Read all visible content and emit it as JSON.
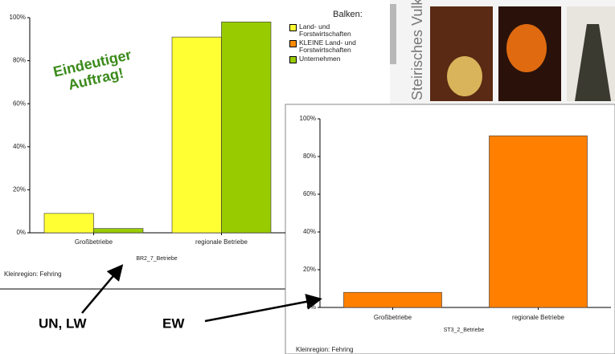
{
  "chart_data": [
    {
      "type": "bar",
      "legend_title": "Balken:",
      "annotation": [
        "Eindeutiger",
        "Auftrag!"
      ],
      "categories": [
        "Großbetriebe",
        "regionale Betriebe"
      ],
      "series": [
        {
          "name": "Land- und Forstwirtschaften",
          "color": "#ffff33",
          "values": [
            9,
            91
          ]
        },
        {
          "name": "KLEINE Land- und Forstwirtschaften",
          "color": "#ff8c00",
          "values": [
            null,
            null
          ]
        },
        {
          "name": "Unternehmen",
          "color": "#99cc00",
          "values": [
            2,
            98
          ]
        }
      ],
      "x_label": "BR2_7_Betriebe",
      "footnote": "Kleinregion: Fehring",
      "ylim": [
        0,
        100
      ],
      "yticks": [
        {
          "value": 0,
          "label": "0%"
        },
        {
          "value": 20,
          "label": "20%"
        },
        {
          "value": 40,
          "label": "40%"
        },
        {
          "value": 60,
          "label": "60%"
        },
        {
          "value": 80,
          "label": "80%"
        },
        {
          "value": 100,
          "label": "100%"
        }
      ]
    },
    {
      "type": "bar",
      "categories": [
        "Großbetriebe",
        "regionale Betriebe"
      ],
      "values": [
        8,
        91
      ],
      "color": "#ff8000",
      "x_label": "ST3_2_Betriebe",
      "footnote": "Kleinregion: Fehring",
      "ylim": [
        0,
        100
      ],
      "yticks": [
        {
          "value": 0,
          "label": "0%"
        },
        {
          "value": 20,
          "label": "20%"
        },
        {
          "value": 40,
          "label": "40%"
        },
        {
          "value": 60,
          "label": "60%"
        },
        {
          "value": 80,
          "label": "80%"
        },
        {
          "value": 100,
          "label": "100%"
        }
      ]
    }
  ],
  "labels": {
    "left_arrow": "UN, LW",
    "right_arrow": "EW",
    "photo_caption": "Steirisches Vulkanland"
  }
}
